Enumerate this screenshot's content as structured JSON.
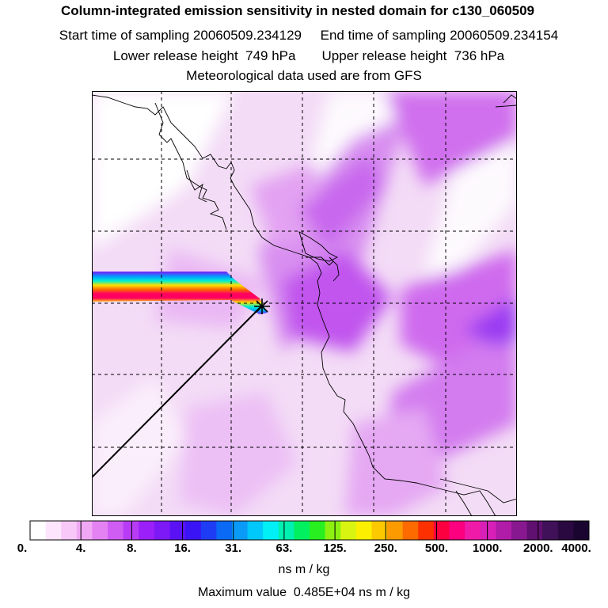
{
  "header": {
    "title": "Column-integrated emission sensitivity in nested domain for c130_060509",
    "line1": "Start time of sampling 20060509.234129     End time of sampling 20060509.234154",
    "line2": "Lower release height  749 hPa       Upper release height  736 hPa",
    "line3": "Meteorological data used are from GFS"
  },
  "map": {
    "description_icons": [
      "release-point-star-icon"
    ],
    "grid": "dashed lat/lon gridlines",
    "colors": {
      "background_light": "#f3d9f6",
      "background_mid": "#e6a6f0",
      "background_strong": "#c255ea",
      "background_peak": "#8f2af0"
    }
  },
  "colorbar": {
    "ticks": [
      "0.",
      "4.",
      "8.",
      "16.",
      "31.",
      "63.",
      "125.",
      "250.",
      "500.",
      "1000.",
      "2000.",
      "4000."
    ],
    "colors": [
      "#ffffff",
      "#fde6fd",
      "#f8c8f8",
      "#f0a8f4",
      "#e482f4",
      "#cf5cf3",
      "#b83cf5",
      "#9b1ff8",
      "#7d18f6",
      "#5a12f4",
      "#3a14f4",
      "#1f3cf5",
      "#0a6af6",
      "#0a9af8",
      "#00c8fa",
      "#00f0f6",
      "#00f0b0",
      "#00f060",
      "#28f020",
      "#8cf010",
      "#d8f410",
      "#fcf000",
      "#fcc800",
      "#fc9a00",
      "#fc6a00",
      "#fc3000",
      "#fc0040",
      "#fc0080",
      "#f01aa8",
      "#d820b8",
      "#b01ca8",
      "#881890",
      "#601070",
      "#401058",
      "#2a0840",
      "#1a0530"
    ],
    "units": "ns m / kg"
  },
  "footer": {
    "max_value": "Maximum value  0.485E+04 ns m / kg"
  }
}
